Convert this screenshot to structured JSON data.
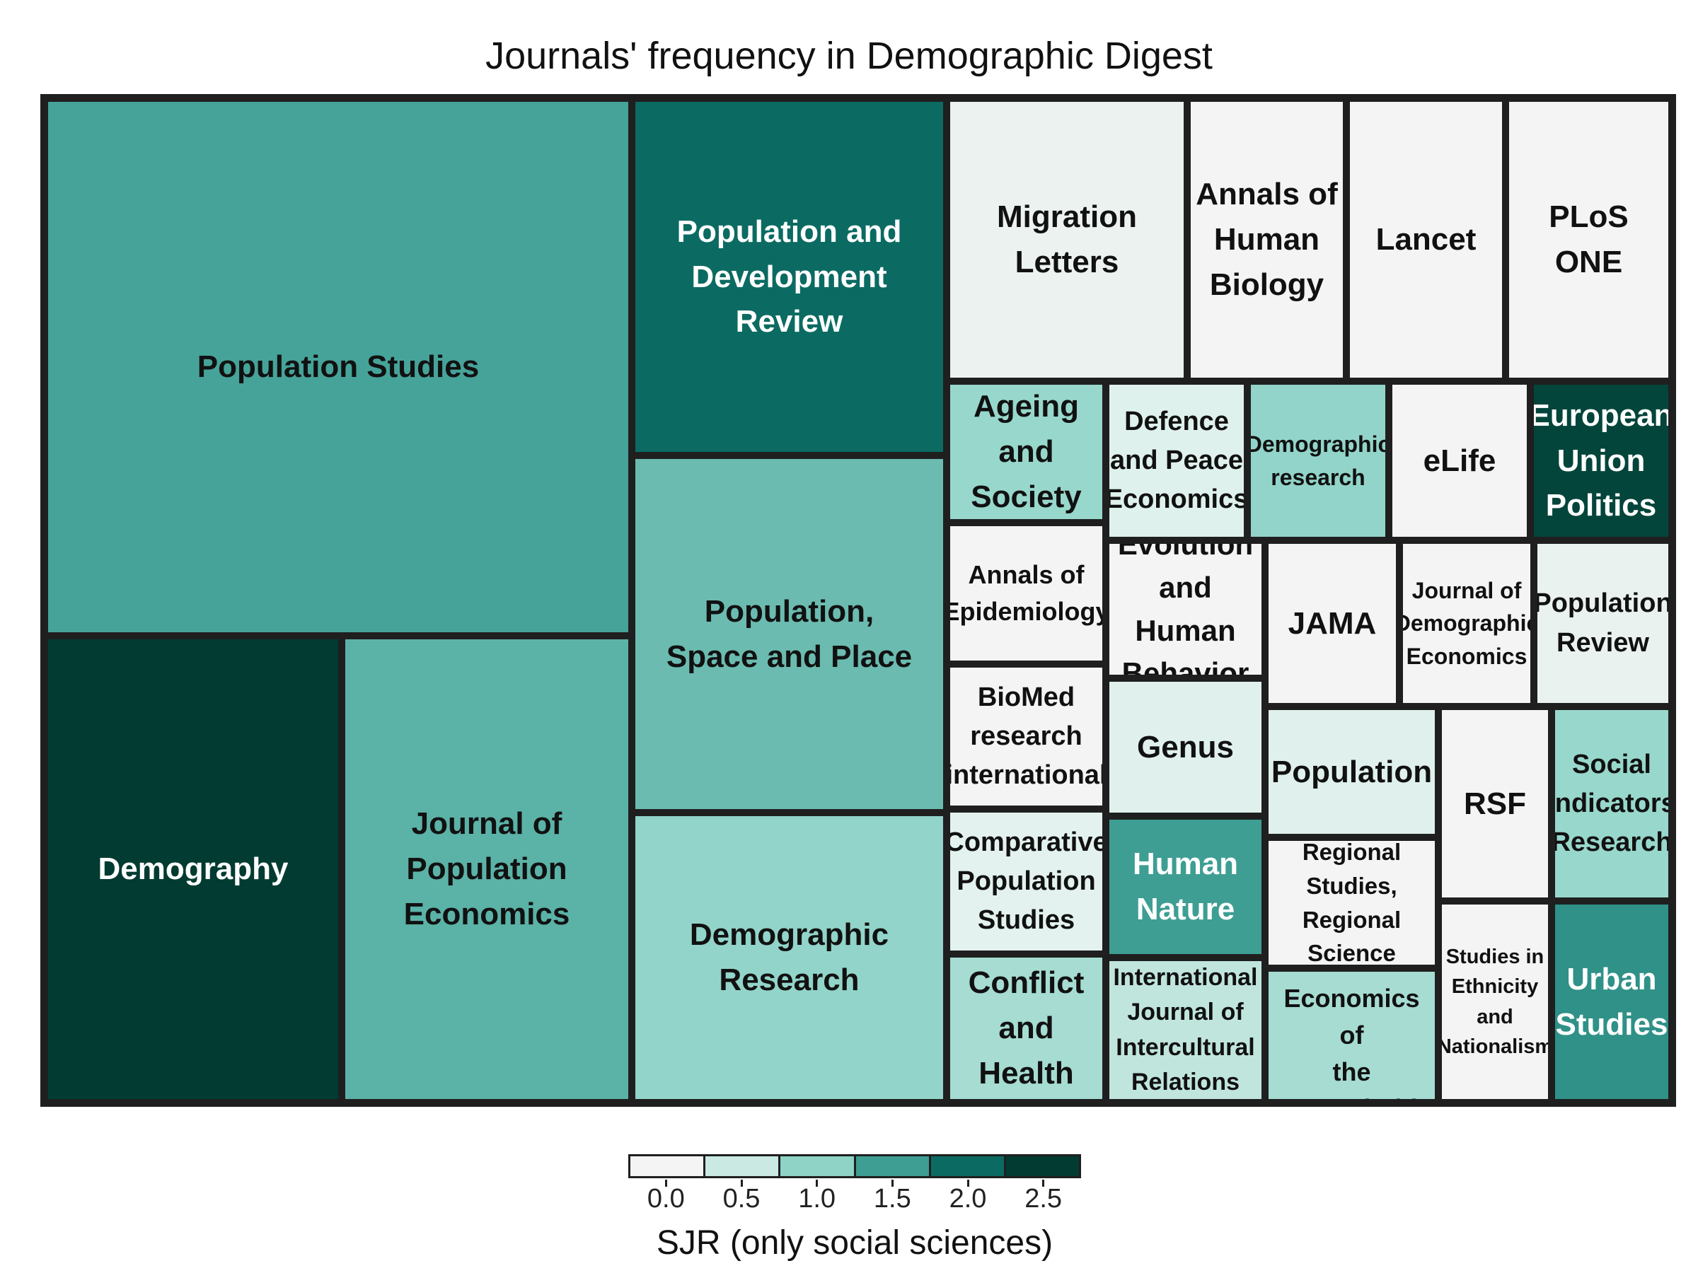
{
  "chart_data": {
    "type": "treemap",
    "title": "Journals' frequency in Demographic Digest",
    "colorbar": {
      "title": "SJR (only social sciences)",
      "ticks": [
        "0.0",
        "0.5",
        "1.0",
        "1.5",
        "2.0",
        "2.5"
      ],
      "bins": [
        "#f4f4f4",
        "#c9e9e2",
        "#8fd3c7",
        "#3e9e93",
        "#0b6b62",
        "#023b31"
      ]
    },
    "tiles": [
      {
        "label": "Population Studies",
        "sjr": 1.3,
        "color": "#46a399",
        "text_color": "#111111"
      },
      {
        "label": "Demography",
        "sjr": 2.6,
        "color": "#023b31",
        "text_color": "#ffffff"
      },
      {
        "label": "Journal of\nPopulation\nEconomics",
        "sjr": 1.2,
        "color": "#5bb2a7",
        "text_color": "#111111"
      },
      {
        "label": "Population and\nDevelopment Review",
        "sjr": 2.0,
        "color": "#0b6b62",
        "text_color": "#ffffff"
      },
      {
        "label": "Population,\nSpace and Place",
        "sjr": 1.1,
        "color": "#6bbbb0",
        "text_color": "#111111"
      },
      {
        "label": "Demographic\nResearch",
        "sjr": 0.9,
        "color": "#92d4c9",
        "text_color": "#111111"
      },
      {
        "label": "Migration\nLetters",
        "sjr": 0.3,
        "color": "#ebf2f0",
        "text_color": "#111111"
      },
      {
        "label": "Annals of\nHuman\nBiology",
        "sjr": 0.1,
        "color": "#f4f4f4",
        "text_color": "#111111"
      },
      {
        "label": "Lancet",
        "sjr": 0.0,
        "color": "#f4f4f4",
        "text_color": "#111111"
      },
      {
        "label": "PLoS\nONE",
        "sjr": 0.0,
        "color": "#f4f4f4",
        "text_color": "#111111"
      },
      {
        "label": "Ageing\nand\nSociety",
        "sjr": 0.9,
        "color": "#98d7cc",
        "text_color": "#111111"
      },
      {
        "label": "Defence\nand Peace\nEconomics",
        "sjr": 0.5,
        "color": "#def1ec",
        "text_color": "#111111"
      },
      {
        "label": "Demographic\nresearch",
        "sjr": 0.9,
        "color": "#92d4c9",
        "text_color": "#111111"
      },
      {
        "label": "eLife",
        "sjr": 0.0,
        "color": "#f4f4f4",
        "text_color": "#111111"
      },
      {
        "label": "European\nUnion\nPolitics",
        "sjr": 2.5,
        "color": "#04453b",
        "text_color": "#ffffff"
      },
      {
        "label": "Annals of\nEpidemiology",
        "sjr": 0.0,
        "color": "#f4f4f4",
        "text_color": "#111111"
      },
      {
        "label": "Evolution\nand Human\nBehavior",
        "sjr": 0.1,
        "color": "#f4f4f4",
        "text_color": "#111111"
      },
      {
        "label": "JAMA",
        "sjr": 0.0,
        "color": "#f4f4f4",
        "text_color": "#111111"
      },
      {
        "label": "Journal of\nDemographic\nEconomics",
        "sjr": 0.1,
        "color": "#f4f4f4",
        "text_color": "#111111"
      },
      {
        "label": "Population\nReview",
        "sjr": 0.3,
        "color": "#eaf2f0",
        "text_color": "#111111"
      },
      {
        "label": "BioMed\nresearch\ninternational",
        "sjr": 0.0,
        "color": "#f4f4f4",
        "text_color": "#111111"
      },
      {
        "label": "Genus",
        "sjr": 0.5,
        "color": "#e0f1ed",
        "text_color": "#111111"
      },
      {
        "label": "Population",
        "sjr": 0.5,
        "color": "#e0f1ed",
        "text_color": "#111111"
      },
      {
        "label": "RSF",
        "sjr": 0.0,
        "color": "#f4f4f4",
        "text_color": "#111111"
      },
      {
        "label": "Social\nIndicators\nResearch",
        "sjr": 0.9,
        "color": "#98d7cc",
        "text_color": "#111111"
      },
      {
        "label": "Comparative\nPopulation\nStudies",
        "sjr": 0.4,
        "color": "#e3f2ee",
        "text_color": "#111111"
      },
      {
        "label": "Human\nNature",
        "sjr": 1.4,
        "color": "#3e9e93",
        "text_color": "#ffffff"
      },
      {
        "label": "Regional\nStudies,\nRegional\nScience",
        "sjr": 0.0,
        "color": "#f4f4f4",
        "text_color": "#111111"
      },
      {
        "label": "Conflict\nand\nHealth",
        "sjr": 0.8,
        "color": "#a6dcd2",
        "text_color": "#111111"
      },
      {
        "label": "International\nJournal of\nIntercultural\nRelations",
        "sjr": 0.7,
        "color": "#c0e5dd",
        "text_color": "#111111"
      },
      {
        "label": "Review of\nEconomics of\nthe Household",
        "sjr": 0.8,
        "color": "#a6dcd2",
        "text_color": "#111111"
      },
      {
        "label": "Studies in\nEthnicity\nand\nNationalism",
        "sjr": 0.0,
        "color": "#f4f4f4",
        "text_color": "#111111"
      },
      {
        "label": "Urban\nStudies",
        "sjr": 1.6,
        "color": "#2f9187",
        "text_color": "#ffffff"
      }
    ]
  }
}
